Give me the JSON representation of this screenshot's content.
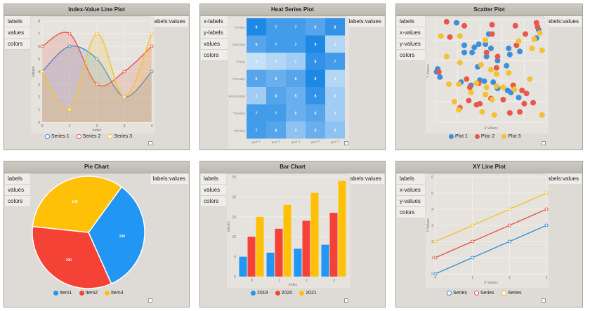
{
  "panels": [
    {
      "title": "Index-Value Line Plot",
      "side": [
        "labels",
        "values",
        "colors"
      ],
      "badge": "labels:values"
    },
    {
      "title": "Heat Series Plot",
      "side": [
        "x-labels",
        "y-labels",
        "values",
        "colors"
      ],
      "badge": "labels:values"
    },
    {
      "title": "Scatter Plot",
      "side": [
        "labels",
        "x-values",
        "y-values",
        "colors"
      ],
      "badge": "labels:values"
    },
    {
      "title": "Pie Chart",
      "side": [
        "labels",
        "values",
        "colors"
      ],
      "badge": "labels:values"
    },
    {
      "title": "Bar Chart",
      "side": [
        "labels",
        "values",
        "colors"
      ],
      "badge": "labels:values"
    },
    {
      "title": "XY Line Plot",
      "side": [
        "labels",
        "x-values",
        "y-values",
        "colors"
      ],
      "badge": "labels:values"
    }
  ],
  "chart_data": [
    {
      "type": "line",
      "title": "Index-Value Line Plot",
      "xlabel": "Index",
      "ylabel": "Values",
      "x": [
        0,
        1,
        2,
        3,
        4
      ],
      "xlim": [
        0,
        4
      ],
      "ylim": [
        0,
        8
      ],
      "yticks": [
        0,
        1,
        2,
        3,
        4,
        5,
        6,
        7,
        8
      ],
      "xticks": [
        0,
        1,
        2,
        3,
        4
      ],
      "series": [
        {
          "name": "Series 1",
          "values": [
            4,
            6,
            5,
            2,
            4
          ],
          "color": "#3b8fdc"
        },
        {
          "name": "Series 2",
          "values": [
            6,
            7,
            3,
            4,
            6
          ],
          "color": "#e8574b"
        },
        {
          "name": "Series 3",
          "values": [
            4,
            1,
            7,
            2,
            7
          ],
          "color": "#f2c230"
        }
      ],
      "area_fill": true
    },
    {
      "type": "heatmap",
      "title": "Heat Series Plot",
      "y_categories": [
        "Sunday",
        "Saturday",
        "Friday",
        "Thursday",
        "Wednesday",
        "Tuesday",
        "Monday"
      ],
      "x_categories": [
        "Item 1",
        "Item 2",
        "Item 3",
        "Item 4",
        "Item 5"
      ],
      "values": [
        [
          9,
          7,
          7,
          6,
          8
        ],
        [
          6,
          7,
          7,
          9,
          1
        ],
        [
          0,
          1,
          2,
          8,
          7
        ],
        [
          6,
          5,
          6,
          9,
          1
        ],
        [
          2,
          6,
          5,
          8,
          2
        ],
        [
          7,
          7,
          5,
          6,
          2
        ],
        [
          7,
          6,
          3,
          5,
          3
        ]
      ],
      "color_low": "#c6e0f7",
      "color_high": "#1e88e5"
    },
    {
      "type": "scatter",
      "title": "Scatter Plot",
      "xlabel": "X Values",
      "ylabel": "Y Values",
      "xlim": [
        0,
        10
      ],
      "ylim": [
        0,
        10
      ],
      "series": [
        {
          "name": "Plot 1",
          "color": "#3b8fdc",
          "points": [
            [
              1.9,
              9.7
            ],
            [
              0.2,
              5.2
            ],
            [
              0.1,
              4.9
            ],
            [
              0.4,
              4.4
            ],
            [
              2.6,
              7.5
            ],
            [
              2.6,
              6.8
            ],
            [
              3.5,
              7.3
            ],
            [
              3.3,
              6.8
            ],
            [
              3.9,
              7.6
            ],
            [
              4.8,
              8.6
            ],
            [
              4.5,
              7.6
            ],
            [
              5.0,
              7.2
            ],
            [
              6.6,
              7.2
            ],
            [
              6.7,
              6.6
            ],
            [
              6.4,
              5.5
            ],
            [
              7.6,
              6.9
            ],
            [
              4.0,
              4.1
            ],
            [
              4.4,
              4.0
            ],
            [
              5.2,
              3.9
            ],
            [
              5.6,
              3.3
            ],
            [
              6.5,
              3.1
            ],
            [
              6.8,
              2.9
            ],
            [
              7.5,
              2.4
            ],
            [
              9.3,
              9.0
            ],
            [
              9.1,
              8.2
            ],
            [
              5.6,
              6.0
            ],
            [
              4.6,
              6.4
            ],
            [
              3.2,
              3.6
            ],
            [
              2.3,
              3.9
            ],
            [
              3.8,
              5.4
            ]
          ]
        },
        {
          "name": "Ploc 2",
          "color": "#e8574b",
          "points": [
            [
              1.0,
              9.8
            ],
            [
              2.6,
              9.4
            ],
            [
              5.1,
              9.5
            ],
            [
              7.2,
              9.4
            ],
            [
              9.1,
              9.7
            ],
            [
              9.2,
              9.3
            ],
            [
              1.3,
              8.3
            ],
            [
              5.1,
              8.6
            ],
            [
              8.1,
              8.6
            ],
            [
              5.6,
              6.4
            ],
            [
              4.6,
              6.8
            ],
            [
              7.3,
              7.5
            ],
            [
              0.3,
              4.9
            ],
            [
              2.8,
              4.2
            ],
            [
              3.9,
              3.8
            ],
            [
              5.5,
              5.3
            ],
            [
              3.1,
              3.4
            ],
            [
              7.0,
              3.6
            ],
            [
              7.8,
              3.1
            ],
            [
              8.2,
              2.8
            ],
            [
              6.1,
              2.2
            ],
            [
              3.0,
              2.1
            ],
            [
              3.7,
              1.7
            ],
            [
              5.0,
              2.3
            ],
            [
              8.0,
              1.8
            ],
            [
              8.8,
              1.9
            ],
            [
              4.0,
              1.8
            ],
            [
              2.2,
              1.4
            ],
            [
              6.7,
              0.9
            ],
            [
              7.6,
              1.0
            ]
          ]
        },
        {
          "name": "Plot 3",
          "color": "#f2c230",
          "points": [
            [
              0.5,
              8.4
            ],
            [
              2.2,
              8.4
            ],
            [
              4.5,
              8.0
            ],
            [
              7.5,
              7.9
            ],
            [
              9.4,
              8.7
            ],
            [
              8.9,
              8.1
            ],
            [
              8.7,
              7.2
            ],
            [
              9.6,
              7.0
            ],
            [
              1.0,
              6.4
            ],
            [
              2.2,
              5.8
            ],
            [
              4.1,
              5.6
            ],
            [
              5.0,
              5.1
            ],
            [
              5.5,
              4.7
            ],
            [
              6.6,
              4.8
            ],
            [
              8.5,
              4.2
            ],
            [
              1.2,
              3.7
            ],
            [
              2.1,
              3.7
            ],
            [
              3.7,
              3.8
            ],
            [
              4.6,
              3.4
            ],
            [
              5.5,
              3.5
            ],
            [
              6.1,
              3.4
            ],
            [
              7.1,
              3.2
            ],
            [
              1.7,
              2.0
            ],
            [
              3.2,
              2.9
            ],
            [
              4.5,
              2.7
            ],
            [
              5.1,
              2.2
            ],
            [
              2.1,
              1.2
            ],
            [
              4.2,
              1.0
            ],
            [
              5.3,
              0.7
            ],
            [
              9.6,
              0.7
            ]
          ]
        }
      ]
    },
    {
      "type": "pie",
      "title": "Pie Chart",
      "categories": [
        "Item1",
        "Item2",
        "Item3"
      ],
      "values": [
        100,
        100,
        100
      ],
      "colors": [
        "#2196f3",
        "#f44336",
        "#ffc107"
      ]
    },
    {
      "type": "bar",
      "title": "Bar Chart",
      "xlabel": "Index",
      "ylabel": "Values",
      "categories": [
        "0",
        "1",
        "2",
        "3"
      ],
      "ylim": [
        0,
        25
      ],
      "yticks": [
        0,
        5,
        10,
        15,
        20,
        25
      ],
      "series": [
        {
          "name": "2019",
          "values": [
            5,
            6,
            7,
            8
          ],
          "color": "#2196f3"
        },
        {
          "name": "2020",
          "values": [
            10,
            12,
            14,
            16
          ],
          "color": "#f44336"
        },
        {
          "name": "2021",
          "values": [
            15,
            18,
            21,
            24
          ],
          "color": "#ffc107"
        }
      ]
    },
    {
      "type": "line",
      "title": "XY Line Plot",
      "xlabel": "X Values",
      "ylabel": "Y Values",
      "x": [
        0,
        1,
        2,
        3
      ],
      "xlim": [
        0,
        3
      ],
      "ylim": [
        0,
        10
      ],
      "yticks": [
        0,
        1,
        2,
        3,
        4,
        5,
        6,
        7,
        8,
        9,
        10
      ],
      "xticks": [
        0,
        1,
        2,
        3
      ],
      "series": [
        {
          "name": "Series",
          "values": [
            0,
            1,
            2,
            3
          ],
          "color": "#3b8fdc"
        },
        {
          "name": "Series",
          "values": [
            1,
            2,
            3,
            4
          ],
          "color": "#e8574b"
        },
        {
          "name": "Series",
          "values": [
            2,
            3,
            4,
            5
          ],
          "color": "#f2c230"
        }
      ],
      "ylim_shown": [
        0,
        6
      ]
    }
  ]
}
